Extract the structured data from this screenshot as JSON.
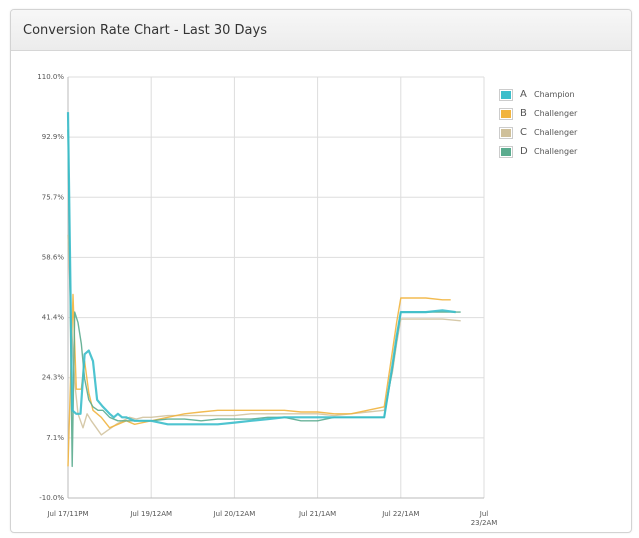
{
  "title": "Conversion Rate Chart - Last 30 Days",
  "legend": [
    {
      "letter": "A",
      "name": "Champion",
      "color": "#3bbecb"
    },
    {
      "letter": "B",
      "name": "Challenger",
      "color": "#f1b43e"
    },
    {
      "letter": "C",
      "name": "Challenger",
      "color": "#cfc09a"
    },
    {
      "letter": "D",
      "name": "Challenger",
      "color": "#5aab8e"
    }
  ],
  "chart_data": {
    "type": "line",
    "title": "Conversion Rate Chart - Last 30 Days",
    "xlabel": "",
    "ylabel": "",
    "x_tick_labels": [
      "Jul 17/11PM",
      "Jul 19/12AM",
      "Jul 20/12AM",
      "Jul 21/1AM",
      "Jul 22/1AM",
      "Jul 23/2AM"
    ],
    "x_range_days": [
      0,
      5.0
    ],
    "x_ticks_days": [
      0,
      1.0,
      2.0,
      3.0,
      4.0,
      5.0
    ],
    "y_tick_labels": [
      "-10.0%",
      "7.1%",
      "24.3%",
      "41.4%",
      "58.6%",
      "75.7%",
      "92.9%",
      "110.0%"
    ],
    "ylim": [
      -10.0,
      110.0
    ],
    "grid": true,
    "legend_position": "right",
    "series": [
      {
        "name": "A Champion",
        "color": "#3bbecb",
        "x": [
          0.0,
          0.05,
          0.1,
          0.15,
          0.2,
          0.25,
          0.3,
          0.35,
          0.42,
          0.5,
          0.55,
          0.6,
          0.65,
          0.7,
          0.8,
          0.9,
          1.0,
          1.2,
          1.4,
          1.6,
          1.8,
          2.0,
          2.2,
          2.4,
          2.6,
          2.8,
          3.0,
          3.2,
          3.4,
          3.6,
          3.8,
          3.9,
          3.95,
          4.0,
          4.1,
          4.3,
          4.5,
          4.66
        ],
        "y": [
          100.0,
          15.0,
          14.0,
          14.0,
          31.0,
          32.0,
          29.0,
          18.0,
          16.0,
          14.0,
          13.0,
          14.0,
          13.0,
          13.0,
          12.0,
          12.0,
          12.0,
          11.0,
          11.0,
          11.0,
          11.0,
          11.5,
          12.0,
          12.5,
          13.0,
          13.0,
          13.0,
          13.0,
          13.0,
          13.0,
          13.0,
          28.0,
          36.0,
          43.0,
          43.0,
          43.0,
          43.5,
          43.0
        ]
      },
      {
        "name": "B Challenger",
        "color": "#f1b43e",
        "x": [
          0.0,
          0.06,
          0.1,
          0.16,
          0.2,
          0.25,
          0.3,
          0.4,
          0.5,
          0.6,
          0.7,
          0.8,
          0.9,
          1.0,
          1.2,
          1.4,
          1.6,
          1.8,
          2.0,
          2.2,
          2.4,
          2.6,
          2.8,
          3.0,
          3.2,
          3.4,
          3.6,
          3.8,
          3.9,
          3.95,
          4.0,
          4.1,
          4.3,
          4.5,
          4.6
        ],
        "y": [
          -1.0,
          48.0,
          21.0,
          21.0,
          29.0,
          20.0,
          15.0,
          13.0,
          10.0,
          11.0,
          12.0,
          11.0,
          11.5,
          12.0,
          13.0,
          14.0,
          14.5,
          15.0,
          15.0,
          15.0,
          15.0,
          15.0,
          14.5,
          14.5,
          14.0,
          14.0,
          15.0,
          16.0,
          32.0,
          40.0,
          47.0,
          47.0,
          47.0,
          46.5,
          46.5
        ]
      },
      {
        "name": "C Challenger",
        "color": "#cfc09a",
        "x": [
          0.0,
          0.04,
          0.08,
          0.12,
          0.18,
          0.23,
          0.28,
          0.34,
          0.4,
          0.46,
          0.52,
          0.58,
          0.66,
          0.74,
          0.82,
          0.9,
          1.0,
          1.2,
          1.4,
          1.6,
          1.8,
          2.0,
          2.2,
          2.4,
          2.6,
          2.8,
          3.0,
          3.2,
          3.4,
          3.6,
          3.8,
          3.9,
          3.95,
          4.0,
          4.1,
          4.3,
          4.5,
          4.72
        ],
        "y": [
          65.0,
          40.0,
          23.0,
          14.0,
          10.0,
          14.0,
          12.0,
          10.0,
          8.0,
          9.0,
          10.0,
          11.0,
          12.0,
          13.0,
          12.5,
          13.0,
          13.0,
          13.5,
          13.5,
          13.5,
          13.5,
          13.5,
          14.0,
          14.0,
          14.0,
          14.0,
          14.0,
          13.5,
          14.0,
          14.5,
          15.0,
          26.0,
          34.0,
          41.0,
          41.0,
          41.0,
          41.0,
          40.5
        ]
      },
      {
        "name": "D Challenger",
        "color": "#5aab8e",
        "x": [
          0.0,
          0.05,
          0.08,
          0.12,
          0.16,
          0.2,
          0.25,
          0.3,
          0.36,
          0.42,
          0.5,
          0.6,
          0.7,
          0.8,
          0.9,
          1.0,
          1.2,
          1.4,
          1.6,
          1.8,
          2.0,
          2.2,
          2.4,
          2.6,
          2.8,
          3.0,
          3.2,
          3.4,
          3.6,
          3.8,
          3.9,
          3.95,
          4.0,
          4.1,
          4.3,
          4.5,
          4.72
        ],
        "y": [
          95.0,
          -1.0,
          43.0,
          40.0,
          34.0,
          24.0,
          18.0,
          16.0,
          15.0,
          15.0,
          13.0,
          12.0,
          12.0,
          12.0,
          12.0,
          12.0,
          12.5,
          12.5,
          12.0,
          12.5,
          12.5,
          12.5,
          13.0,
          13.0,
          12.0,
          12.0,
          13.0,
          13.0,
          13.0,
          13.0,
          27.0,
          35.0,
          43.0,
          43.0,
          43.0,
          43.0,
          43.0
        ]
      }
    ]
  }
}
